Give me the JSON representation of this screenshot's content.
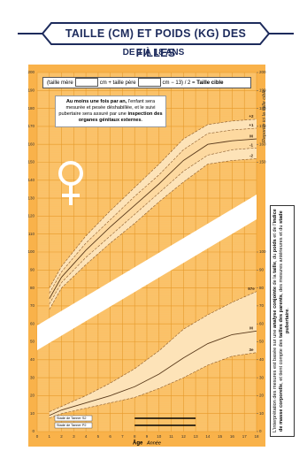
{
  "chart_data": {
    "type": "line",
    "title": "TAILLE (CM) ET POIDS (KG) DES FILLES",
    "subtitle": "DE 1 À 18 ANS",
    "target_box": [
      "(taille mère",
      "cm + taille père",
      "cm − 13) / 2 =",
      "Taille cible"
    ],
    "note": [
      "Au moins une fois par an,",
      " l'enfant sera mesurée et pesée déshabillée, et le suivi pubertaire sera assuré par une ",
      "inspection des organes génitaux externes",
      "."
    ],
    "reporter": "Reporter ici la taille cible",
    "side_note": [
      "L'interprétation des mesures est basée sur une ",
      "analyse conjointe",
      " de la ",
      "taille",
      ", du ",
      "poids",
      " et de l'",
      "indice de masse corporelle",
      ", et tient compte des ",
      "tailles des parents",
      ", des mesures antérieures et du ",
      "stade pubertaire",
      "."
    ],
    "x_label": "Âge",
    "x_sublabel": "Année",
    "x": [
      1,
      2,
      4,
      6,
      8,
      10,
      12,
      14,
      16,
      18
    ],
    "xlim": [
      0,
      18
    ],
    "xticks": [
      0,
      1,
      2,
      3,
      4,
      5,
      6,
      7,
      8,
      9,
      10,
      11,
      12,
      13,
      14,
      15,
      16,
      17,
      18
    ],
    "ylim": [
      0,
      200
    ],
    "yticks": [
      0,
      10,
      20,
      30,
      40,
      50,
      60,
      70,
      80,
      90,
      100,
      110,
      120,
      130,
      140,
      150,
      160,
      170,
      180,
      190,
      200
    ],
    "y2lim": [
      0,
      200
    ],
    "y2ticks": [
      0,
      10,
      20,
      30,
      40,
      50,
      60,
      70,
      80,
      90,
      100,
      150,
      160,
      170,
      180,
      190,
      200
    ],
    "grid": true,
    "series": [
      {
        "name": "+2",
        "color": "#8a5a2b",
        "values": [
          80,
          92,
          109,
          123,
          136,
          149,
          163,
          171,
          173,
          174
        ]
      },
      {
        "name": "+1",
        "color": "#8a5a2b",
        "values": [
          77,
          89,
          105,
          118,
          131,
          143,
          157,
          166,
          168,
          169
        ]
      },
      {
        "name": "M",
        "color": "#5a3a1b",
        "values": [
          74,
          86,
          101,
          114,
          126,
          138,
          151,
          160,
          162,
          163
        ]
      },
      {
        "name": "-1",
        "color": "#8a5a2b",
        "values": [
          71,
          83,
          97,
          109,
          121,
          133,
          145,
          154,
          157,
          158
        ]
      },
      {
        "name": "-2",
        "color": "#8a5a2b",
        "values": [
          68,
          80,
          93,
          105,
          116,
          128,
          139,
          149,
          151,
          152
        ]
      },
      {
        "name": "97e",
        "color": "#8a5a2b",
        "values": [
          11,
          14,
          20,
          27,
          35,
          45,
          57,
          65,
          72,
          78
        ]
      },
      {
        "name": "M",
        "color": "#5a3a1b",
        "values": [
          9,
          12,
          16,
          20,
          25,
          32,
          41,
          49,
          54,
          56
        ]
      },
      {
        "name": "3e",
        "color": "#8a5a2b",
        "values": [
          7.5,
          10,
          13,
          16,
          19,
          24,
          30,
          37,
          42,
          44
        ]
      }
    ],
    "tanner": [
      {
        "label": "Stade de Tanner S2",
        "range": [
          8,
          13
        ]
      },
      {
        "label": "Stade de Tanner P2",
        "range": [
          8,
          13
        ]
      }
    ]
  }
}
